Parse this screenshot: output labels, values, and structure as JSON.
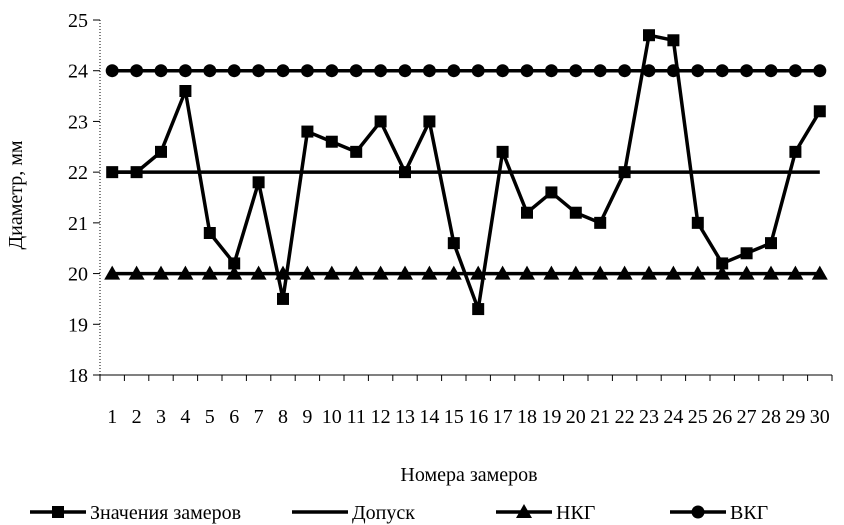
{
  "chart_data": {
    "type": "line",
    "title": "",
    "xlabel": "Номера замеров",
    "ylabel": "Диаметр, мм",
    "ylim": [
      18,
      25
    ],
    "yticks": [
      18,
      19,
      20,
      21,
      22,
      23,
      24,
      25
    ],
    "categories": [
      "1",
      "2",
      "3",
      "4",
      "5",
      "6",
      "7",
      "8",
      "9",
      "10",
      "11",
      "12",
      "13",
      "14",
      "15",
      "16",
      "17",
      "18",
      "19",
      "20",
      "21",
      "22",
      "23",
      "24",
      "25",
      "26",
      "27",
      "28",
      "29",
      "30"
    ],
    "grid": false,
    "legend": "bottom",
    "series": [
      {
        "name": "Значения замеров",
        "marker": "square",
        "color": "#000000",
        "values": [
          22,
          22,
          22.4,
          23.6,
          20.8,
          20.2,
          21.8,
          19.5,
          22.8,
          22.6,
          22.4,
          23,
          22,
          23,
          20.6,
          19.3,
          22.4,
          21.2,
          21.6,
          21.2,
          21,
          22,
          24.7,
          24.6,
          21,
          20.2,
          20.4,
          20.6,
          22.4,
          23.2
        ]
      },
      {
        "name": "Допуск",
        "marker": "none",
        "color": "#000000",
        "values": [
          22,
          22,
          22,
          22,
          22,
          22,
          22,
          22,
          22,
          22,
          22,
          22,
          22,
          22,
          22,
          22,
          22,
          22,
          22,
          22,
          22,
          22,
          22,
          22,
          22,
          22,
          22,
          22,
          22,
          22
        ]
      },
      {
        "name": "НКГ",
        "marker": "triangle",
        "color": "#000000",
        "values": [
          20,
          20,
          20,
          20,
          20,
          20,
          20,
          20,
          20,
          20,
          20,
          20,
          20,
          20,
          20,
          20,
          20,
          20,
          20,
          20,
          20,
          20,
          20,
          20,
          20,
          20,
          20,
          20,
          20,
          20
        ]
      },
      {
        "name": "ВКГ",
        "marker": "circle",
        "color": "#000000",
        "values": [
          24,
          24,
          24,
          24,
          24,
          24,
          24,
          24,
          24,
          24,
          24,
          24,
          24,
          24,
          24,
          24,
          24,
          24,
          24,
          24,
          24,
          24,
          24,
          24,
          24,
          24,
          24,
          24,
          24,
          24
        ]
      }
    ]
  }
}
